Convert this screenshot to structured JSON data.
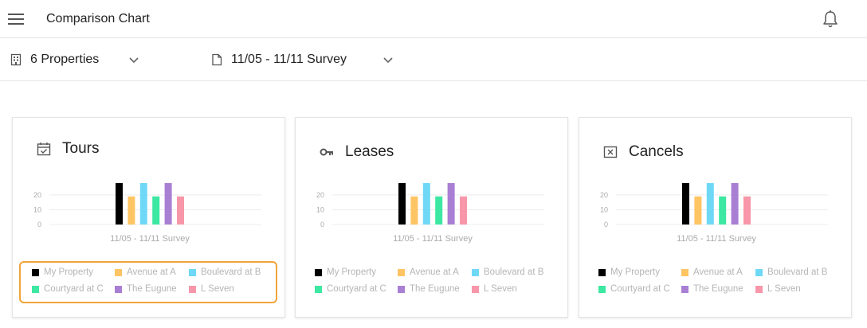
{
  "app_bar": {
    "title": "Comparison Chart"
  },
  "filters": {
    "properties": {
      "label": "6 Properties"
    },
    "survey": {
      "label": "11/05 - 11/11 Survey"
    }
  },
  "colors": {
    "my_property": "#000000",
    "avenue_at_a": "#ffc463",
    "boulevard_at_b": "#6fd8f6",
    "courtyard_at_c": "#3ce8a2",
    "the_eugune": "#a97fd4",
    "l_seven": "#f797a9",
    "legend_highlight": "#f0a43a"
  },
  "legend": [
    {
      "name": "My Property",
      "color": "#000000"
    },
    {
      "name": "Avenue at A",
      "color": "#ffc463"
    },
    {
      "name": "Boulevard at B",
      "color": "#6fd8f6"
    },
    {
      "name": "Courtyard at C",
      "color": "#3ce8a2"
    },
    {
      "name": "The Eugune",
      "color": "#a97fd4"
    },
    {
      "name": "L Seven",
      "color": "#f797a9"
    }
  ],
  "cards": [
    {
      "title": "Tours",
      "icon": "calendar-check-icon",
      "legend_highlighted": true
    },
    {
      "title": "Leases",
      "icon": "key-icon",
      "legend_highlighted": false
    },
    {
      "title": "Cancels",
      "icon": "cancel-box-icon",
      "legend_highlighted": false
    }
  ],
  "chart_data": [
    {
      "type": "bar",
      "title": "Tours",
      "categories": [
        "11/05 - 11/11 Survey"
      ],
      "xlabel": "11/05 - 11/11 Survey",
      "ylabel": "",
      "ylim": [
        0,
        28
      ],
      "yticks": [
        0,
        10,
        20
      ],
      "grid": true,
      "series": [
        {
          "name": "My Property",
          "values": [
            28
          ]
        },
        {
          "name": "Avenue at A",
          "values": [
            19
          ]
        },
        {
          "name": "Boulevard at B",
          "values": [
            28
          ]
        },
        {
          "name": "Courtyard at C",
          "values": [
            19
          ]
        },
        {
          "name": "The Eugune",
          "values": [
            28
          ]
        },
        {
          "name": "L Seven",
          "values": [
            19
          ]
        }
      ]
    },
    {
      "type": "bar",
      "title": "Leases",
      "categories": [
        "11/05 - 11/11 Survey"
      ],
      "xlabel": "11/05 - 11/11 Survey",
      "ylabel": "",
      "ylim": [
        0,
        28
      ],
      "yticks": [
        0,
        10,
        20
      ],
      "grid": true,
      "series": [
        {
          "name": "My Property",
          "values": [
            28
          ]
        },
        {
          "name": "Avenue at A",
          "values": [
            19
          ]
        },
        {
          "name": "Boulevard at B",
          "values": [
            28
          ]
        },
        {
          "name": "Courtyard at C",
          "values": [
            19
          ]
        },
        {
          "name": "The Eugune",
          "values": [
            28
          ]
        },
        {
          "name": "L Seven",
          "values": [
            19
          ]
        }
      ]
    },
    {
      "type": "bar",
      "title": "Cancels",
      "categories": [
        "11/05 - 11/11 Survey"
      ],
      "xlabel": "11/05 - 11/11 Survey",
      "ylabel": "",
      "ylim": [
        0,
        28
      ],
      "yticks": [
        0,
        10,
        20
      ],
      "grid": true,
      "series": [
        {
          "name": "My Property",
          "values": [
            28
          ]
        },
        {
          "name": "Avenue at A",
          "values": [
            19
          ]
        },
        {
          "name": "Boulevard at B",
          "values": [
            28
          ]
        },
        {
          "name": "Courtyard at C",
          "values": [
            19
          ]
        },
        {
          "name": "The Eugune",
          "values": [
            28
          ]
        },
        {
          "name": "L Seven",
          "values": [
            19
          ]
        }
      ]
    }
  ]
}
